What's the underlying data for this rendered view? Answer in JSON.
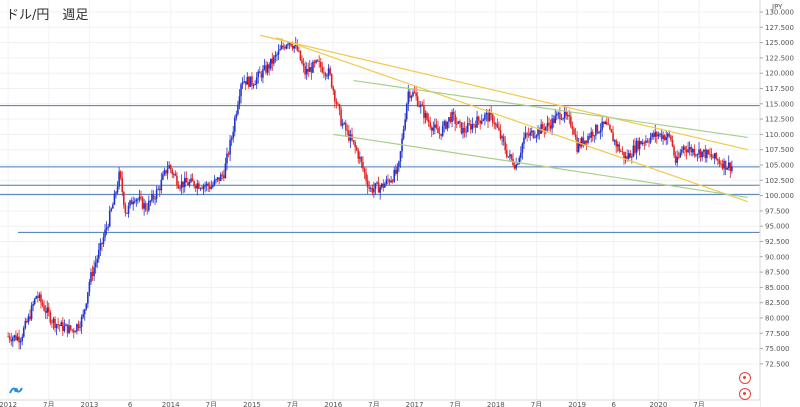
{
  "header": {
    "title": "ドル/円　週足",
    "currency_badge": "JPY"
  },
  "chart_data": {
    "type": "candlestick",
    "currency": "JPY",
    "y_ticks": [
      "130.000",
      "127.500",
      "125.000",
      "122.500",
      "120.000",
      "117.500",
      "115.000",
      "112.500",
      "110.000",
      "107.500",
      "105.000",
      "102.500",
      "100.000",
      "97.500",
      "95.000",
      "92.500",
      "90.000",
      "87.500",
      "85.000",
      "82.500",
      "80.000",
      "77.500",
      "75.000",
      "72.500"
    ],
    "ylim": [
      71.5,
      131
    ],
    "x_ticks": [
      "2012",
      "7月",
      "2013",
      "6",
      "2014",
      "7月",
      "2015",
      "7月",
      "2016",
      "7月",
      "2017",
      "7月",
      "2018",
      "7月",
      "2019",
      "6",
      "2020",
      "7月"
    ],
    "horizontal_lines": [
      114.7,
      104.7,
      101.7,
      100.2,
      94.0
    ],
    "trendlines": [
      {
        "color": "#f2c94c",
        "x0": 2015.1,
        "y0": 126.2,
        "x1": 2021.1,
        "y1": 107.5
      },
      {
        "color": "#f2c94c",
        "x0": 2015.3,
        "y0": 125.8,
        "x1": 2021.1,
        "y1": 99.0
      },
      {
        "color": "#a8d08d",
        "x0": 2016.25,
        "y0": 118.8,
        "x1": 2021.1,
        "y1": 109.5
      },
      {
        "color": "#a8d08d",
        "x0": 2016.0,
        "y0": 110.0,
        "x1": 2021.1,
        "y1": 99.7
      }
    ],
    "price_path": [
      [
        2012.0,
        77.0
      ],
      [
        2012.15,
        76.8
      ],
      [
        2012.25,
        79.8
      ],
      [
        2012.35,
        83.8
      ],
      [
        2012.45,
        81.5
      ],
      [
        2012.55,
        79.5
      ],
      [
        2012.65,
        78.6
      ],
      [
        2012.8,
        78.0
      ],
      [
        2012.92,
        80.0
      ],
      [
        2013.0,
        86.0
      ],
      [
        2013.15,
        92.0
      ],
      [
        2013.3,
        99.0
      ],
      [
        2013.37,
        103.5
      ],
      [
        2013.45,
        97.0
      ],
      [
        2013.55,
        100.0
      ],
      [
        2013.7,
        98.0
      ],
      [
        2013.85,
        101.0
      ],
      [
        2013.97,
        105.0
      ],
      [
        2014.1,
        102.0
      ],
      [
        2014.3,
        102.0
      ],
      [
        2014.5,
        101.5
      ],
      [
        2014.65,
        103.5
      ],
      [
        2014.75,
        109.5
      ],
      [
        2014.87,
        119.0
      ],
      [
        2015.0,
        118.5
      ],
      [
        2015.2,
        121.0
      ],
      [
        2015.45,
        125.5
      ],
      [
        2015.55,
        124.0
      ],
      [
        2015.65,
        120.0
      ],
      [
        2015.8,
        121.5
      ],
      [
        2015.95,
        120.0
      ],
      [
        2016.1,
        112.0
      ],
      [
        2016.3,
        107.0
      ],
      [
        2016.45,
        101.0
      ],
      [
        2016.6,
        101.5
      ],
      [
        2016.8,
        104.0
      ],
      [
        2016.92,
        117.0
      ],
      [
        2017.0,
        116.5
      ],
      [
        2017.15,
        112.5
      ],
      [
        2017.3,
        110.0
      ],
      [
        2017.45,
        113.0
      ],
      [
        2017.6,
        110.5
      ],
      [
        2017.75,
        112.0
      ],
      [
        2017.87,
        113.0
      ],
      [
        2017.97,
        112.5
      ],
      [
        2018.15,
        106.5
      ],
      [
        2018.25,
        105.0
      ],
      [
        2018.35,
        109.5
      ],
      [
        2018.5,
        110.5
      ],
      [
        2018.65,
        111.5
      ],
      [
        2018.8,
        113.5
      ],
      [
        2018.95,
        111.5
      ],
      [
        2019.0,
        108.0
      ],
      [
        2019.2,
        110.5
      ],
      [
        2019.35,
        111.5
      ],
      [
        2019.5,
        108.0
      ],
      [
        2019.6,
        106.0
      ],
      [
        2019.75,
        108.5
      ],
      [
        2019.9,
        109.5
      ],
      [
        2020.0,
        110.0
      ],
      [
        2020.15,
        109.5
      ],
      [
        2020.22,
        105.0
      ],
      [
        2020.3,
        108.0
      ],
      [
        2020.4,
        107.5
      ],
      [
        2020.55,
        107.0
      ],
      [
        2020.7,
        106.0
      ],
      [
        2020.83,
        105.0
      ],
      [
        2020.9,
        104.8
      ]
    ],
    "grid": true
  }
}
